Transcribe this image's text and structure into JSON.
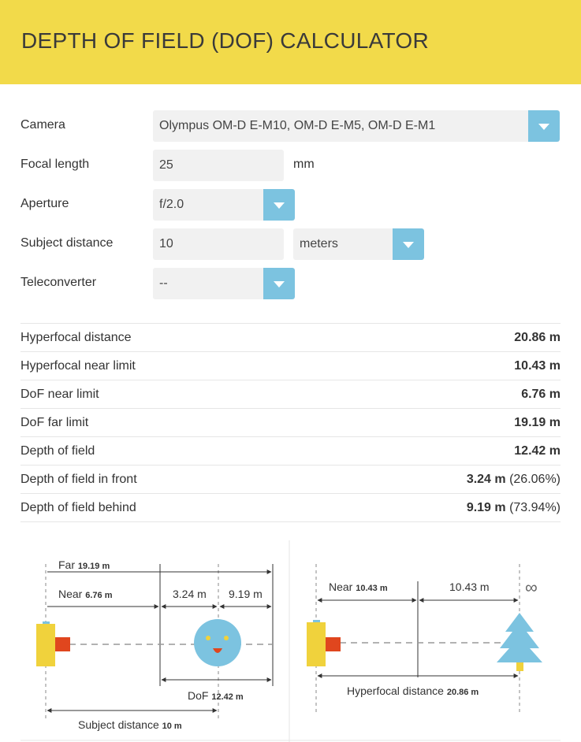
{
  "header": {
    "title": "DEPTH OF FIELD (DOF) CALCULATOR"
  },
  "form": {
    "camera": {
      "label": "Camera",
      "value": "Olympus OM-D E-M10, OM-D E-M5, OM-D E-M1"
    },
    "focal_length": {
      "label": "Focal length",
      "value": "25",
      "unit": "mm"
    },
    "aperture": {
      "label": "Aperture",
      "value": "f/2.0"
    },
    "subject_distance": {
      "label": "Subject distance",
      "value": "10",
      "unit": "meters"
    },
    "teleconverter": {
      "label": "Teleconverter",
      "value": "--"
    }
  },
  "results": [
    {
      "label": "Hyperfocal distance",
      "value": "20.86 m",
      "extra": ""
    },
    {
      "label": "Hyperfocal near limit",
      "value": "10.43 m",
      "extra": ""
    },
    {
      "label": "DoF near limit",
      "value": "6.76 m",
      "extra": ""
    },
    {
      "label": "DoF far limit",
      "value": "19.19 m",
      "extra": ""
    },
    {
      "label": "Depth of field",
      "value": "12.42 m",
      "extra": ""
    },
    {
      "label": "Depth of field in front",
      "value": "3.24 m",
      "extra": " (26.06%)"
    },
    {
      "label": "Depth of field behind",
      "value": "9.19 m",
      "extra": " (73.94%)"
    }
  ],
  "diagram_dof": {
    "far_label": "Far",
    "far_value": "19.19 m",
    "near_label": "Near",
    "near_value": "6.76 m",
    "front_value": "3.24 m",
    "behind_value": "9.19 m",
    "dof_label": "DoF",
    "dof_value": "12.42 m",
    "subject_label": "Subject distance",
    "subject_value": "10 m"
  },
  "diagram_hyperfocal": {
    "near_label": "Near",
    "near_value": "10.43 m",
    "mid_value": "10.43 m",
    "infinity": "∞",
    "hyperfocal_label": "Hyperfocal distance",
    "hyperfocal_value": "20.86 m"
  },
  "colors": {
    "header_bg": "#f2da4a",
    "accent_blue": "#7cc3e0",
    "camera_body": "#f0d23c",
    "lens": "#e0461e",
    "tree": "#7cc3e0",
    "face": "#7cc3e0"
  }
}
